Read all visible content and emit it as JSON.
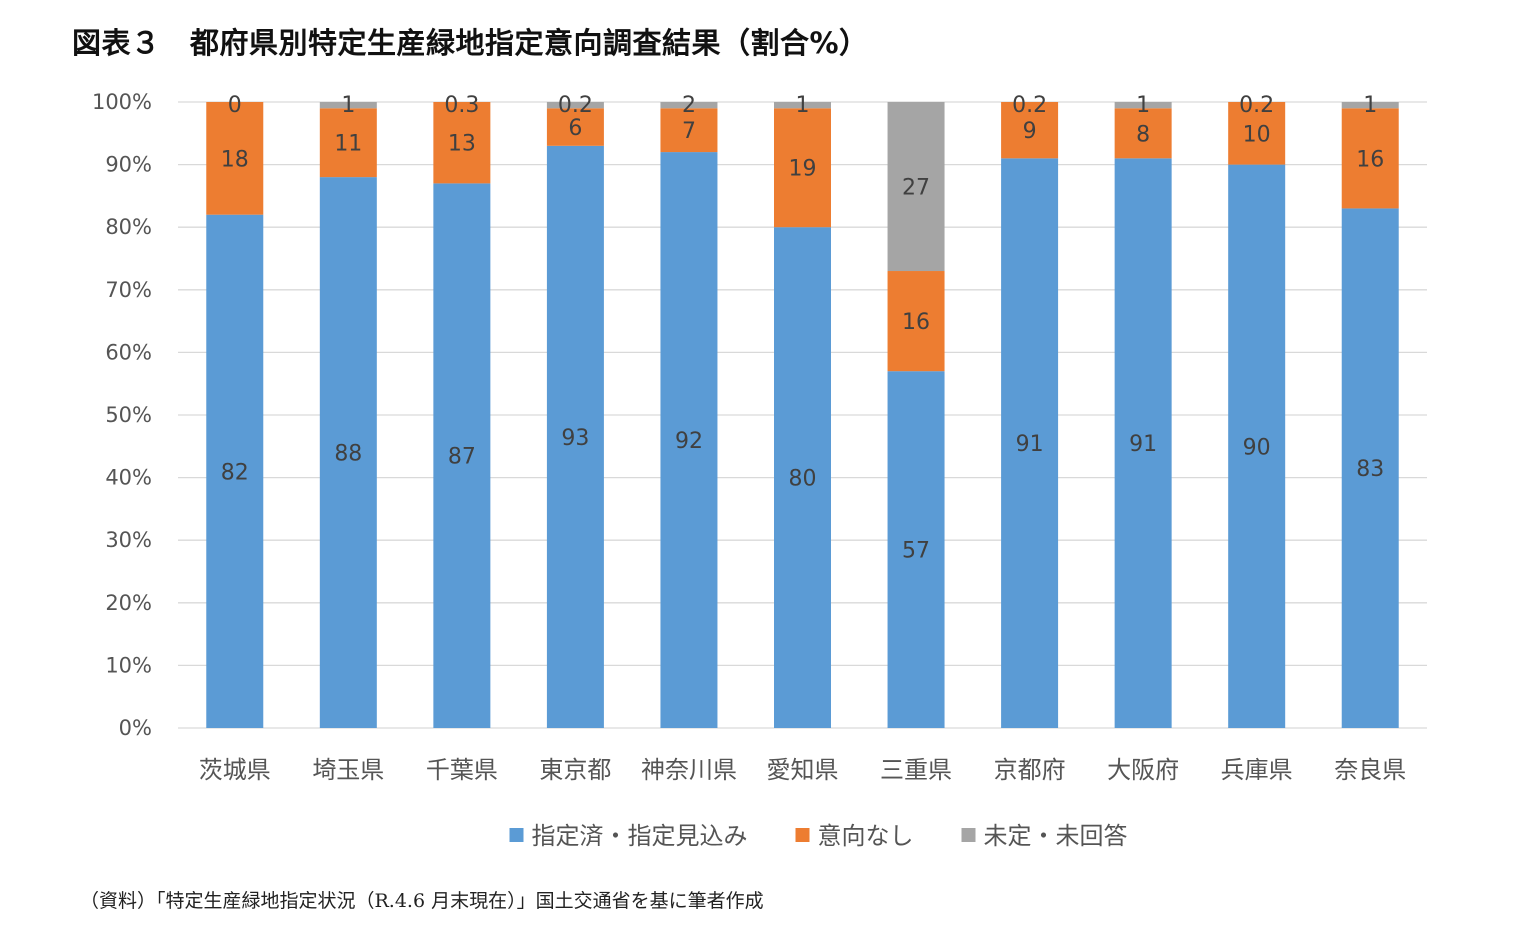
{
  "title": "図表３　都府県別特定生産緑地指定意向調査結果（割合%）",
  "source": "（資料）「特定生産緑地指定状況（R.4.6 月末現在）」国土交通省を基に筆者作成",
  "chart_data": {
    "type": "bar",
    "stacked": true,
    "categories": [
      "茨城県",
      "埼玉県",
      "千葉県",
      "東京都",
      "神奈川県",
      "愛知県",
      "三重県",
      "京都府",
      "大阪府",
      "兵庫県",
      "奈良県"
    ],
    "series": [
      {
        "name": "指定済・指定見込み",
        "color": "#5B9BD5",
        "values": [
          82,
          88,
          87,
          93,
          92,
          80,
          57,
          91,
          91,
          90,
          83
        ],
        "labels": [
          "82",
          "88",
          "87",
          "93",
          "92",
          "80",
          "57",
          "91",
          "91",
          "90",
          "83"
        ]
      },
      {
        "name": "意向なし",
        "color": "#ED7D31",
        "values": [
          18,
          11,
          13,
          6,
          7,
          19,
          16,
          9,
          8,
          10,
          16
        ],
        "labels": [
          "18",
          "11",
          "13",
          "6",
          "7",
          "19",
          "16",
          "9",
          "8",
          "10",
          "16"
        ]
      },
      {
        "name": "未定・未回答",
        "color": "#A5A5A5",
        "values": [
          0,
          1,
          0.3,
          0.2,
          2,
          1,
          27,
          0.2,
          1,
          0.2,
          1
        ],
        "labels": [
          "0",
          "1",
          "0.3",
          "0.2",
          "2",
          "1",
          "27",
          "0.2",
          "1",
          "0.2",
          "1"
        ]
      }
    ],
    "y_ticks": [
      "0%",
      "10%",
      "20%",
      "30%",
      "40%",
      "50%",
      "60%",
      "70%",
      "80%",
      "90%",
      "100%"
    ],
    "ylim": [
      0,
      100
    ],
    "grid": true,
    "legend": "bottom"
  }
}
